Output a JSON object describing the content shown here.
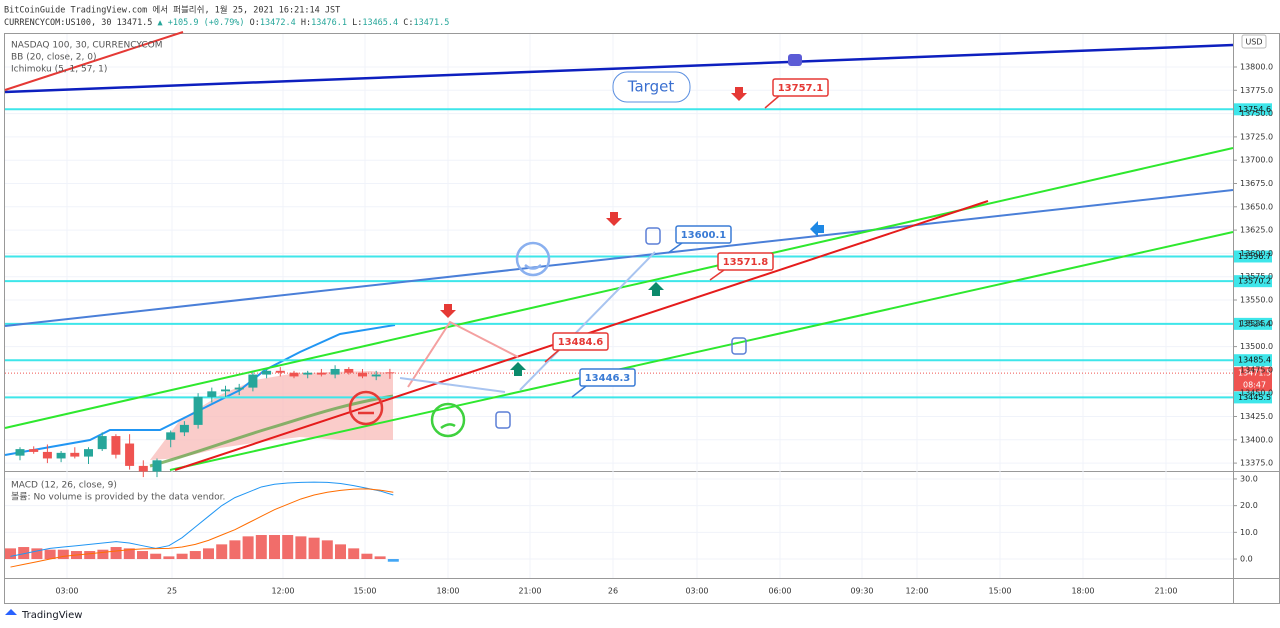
{
  "header": {
    "line1": "BitCoinGuide TradingView.com 에서 퍼블리쉬, 1월 25, 2021 16:21:14 JST",
    "symbol": "CURRENCYCOM:US100, 30",
    "last": "13471.5",
    "change": "▲ +105.9 (+0.79%)",
    "o_label": "O:",
    "o": "13472.4",
    "h_label": "H:",
    "h": "13476.1",
    "l_label": "L:",
    "l": "13465.4",
    "c_label": "C:",
    "c": "13471.5"
  },
  "legend": [
    "NASDAQ 100, 30, CURRENCYCOM",
    "BB (20, close, 2, 0)",
    "Ichimoku (5, 1, 57, 1)"
  ],
  "currency": "USD",
  "price_pane": {
    "ylim": [
      13367.6,
      13835.4
    ],
    "yticks": [
      {
        "value": 13375,
        "label": "13375.0"
      },
      {
        "value": 13400,
        "label": "13400.0"
      },
      {
        "value": 13425,
        "label": "13425.0"
      },
      {
        "value": 13450,
        "label": "13450.0"
      },
      {
        "value": 13475,
        "label": "13475.0"
      },
      {
        "value": 13500,
        "label": "13500.0"
      },
      {
        "value": 13525,
        "label": "13525.0"
      },
      {
        "value": 13550,
        "label": "13550.0"
      },
      {
        "value": 13575,
        "label": "13575.0"
      },
      {
        "value": 13600,
        "label": "13600.0"
      },
      {
        "value": 13625,
        "label": "13625.0"
      },
      {
        "value": 13650,
        "label": "13650.0"
      },
      {
        "value": 13675,
        "label": "13675.0"
      },
      {
        "value": 13700,
        "label": "13700.0"
      },
      {
        "value": 13725,
        "label": "13725.0"
      },
      {
        "value": 13750,
        "label": "13750.0"
      },
      {
        "value": 13775,
        "label": "13775.0"
      },
      {
        "value": 13800,
        "label": "13800.0"
      }
    ],
    "levels": [
      13754.6,
      13596.7,
      13570.2,
      13524.4,
      13485.4,
      13445.5
    ],
    "current_price": 13471.5,
    "countdown": "08:47",
    "candles": [
      [
        13383,
        13392,
        13378,
        13390
      ],
      [
        13390,
        13393,
        13385,
        13387
      ],
      [
        13387,
        13395,
        13375,
        13380
      ],
      [
        13380,
        13388,
        13376,
        13386
      ],
      [
        13386,
        13392,
        13380,
        13382
      ],
      [
        13382,
        13392,
        13374,
        13390
      ],
      [
        13390,
        13408,
        13388,
        13404
      ],
      [
        13404,
        13406,
        13380,
        13384
      ],
      [
        13396,
        13406,
        13368,
        13372
      ],
      [
        13372,
        13378,
        13360,
        13366
      ],
      [
        13366,
        13380,
        13360,
        13378
      ],
      [
        13400,
        13410,
        13392,
        13408
      ],
      [
        13408,
        13420,
        13404,
        13416
      ],
      [
        13416,
        13450,
        13412,
        13446
      ],
      [
        13446,
        13456,
        13440,
        13452
      ],
      [
        13452,
        13458,
        13446,
        13454
      ],
      [
        13454,
        13460,
        13448,
        13456
      ],
      [
        13456,
        13474,
        13452,
        13470
      ],
      [
        13470,
        13476,
        13466,
        13474
      ],
      [
        13474,
        13478,
        13468,
        13472
      ],
      [
        13472,
        13474,
        13466,
        13468
      ],
      [
        13470,
        13474,
        13466,
        13472
      ],
      [
        13472,
        13476,
        13468,
        13470
      ],
      [
        13470,
        13480,
        13466,
        13476
      ],
      [
        13476,
        13478,
        13470,
        13472
      ],
      [
        13472,
        13476,
        13466,
        13468
      ],
      [
        13468,
        13474,
        13464,
        13470
      ],
      [
        13472.4,
        13476.1,
        13465.4,
        13471.5
      ]
    ],
    "callouts": [
      "13757.1",
      "13600.1",
      "13571.8",
      "13484.6",
      "13446.3"
    ],
    "target": "Target"
  },
  "macd_pane": {
    "title": "MACD (12, 26, close, 9)",
    "volume_note": "볼륨: No volume is provided by the data vendor.",
    "ylim": [
      -7.1,
      32.6
    ],
    "yticks": [
      {
        "value": 0,
        "label": "0.0"
      },
      {
        "value": 10,
        "label": "10.0"
      },
      {
        "value": 20,
        "label": "20.0"
      },
      {
        "value": 30,
        "label": "30.0"
      }
    ],
    "histogram": [
      4,
      4.5,
      4,
      3.5,
      3.5,
      3,
      3,
      3.5,
      4.5,
      4,
      3,
      2,
      1,
      2,
      3,
      4,
      5.5,
      7,
      8.5,
      9,
      9,
      9,
      8.5,
      8,
      7,
      5.5,
      4,
      2,
      1,
      -1
    ],
    "macd": [
      1,
      2,
      3,
      4,
      4.5,
      5,
      5.5,
      6,
      6.5,
      6,
      5,
      4,
      5,
      8,
      12,
      16,
      20,
      23,
      25,
      27,
      28,
      28.5,
      28.7,
      28.8,
      28.7,
      28.3,
      27.5,
      26.5,
      25.5,
      24
    ],
    "signal": [
      -3,
      -2,
      -1,
      0,
      1,
      1.5,
      2,
      2.5,
      3,
      3.5,
      3.8,
      3.9,
      4,
      4.5,
      5.5,
      7,
      9,
      11,
      13.5,
      16,
      18.5,
      20.5,
      22.5,
      24,
      25,
      25.7,
      26.2,
      26.3,
      25.8,
      25
    ]
  },
  "time_axis": [
    "03:00",
    "25",
    "12:00",
    "15:00",
    "18:00",
    "21:00",
    "26",
    "03:00",
    "06:00",
    "09:30",
    "12:00",
    "15:00",
    "18:00",
    "21:00"
  ],
  "footer": "TradingView"
}
